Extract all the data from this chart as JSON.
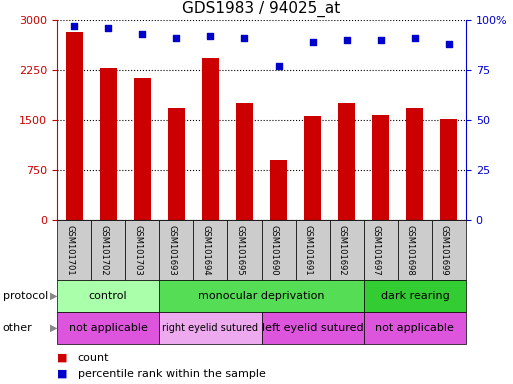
{
  "title": "GDS1983 / 94025_at",
  "samples": [
    "GSM101701",
    "GSM101702",
    "GSM101703",
    "GSM101693",
    "GSM101694",
    "GSM101695",
    "GSM101690",
    "GSM101691",
    "GSM101692",
    "GSM101697",
    "GSM101698",
    "GSM101699"
  ],
  "counts": [
    2820,
    2280,
    2130,
    1680,
    2430,
    1750,
    900,
    1560,
    1760,
    1570,
    1680,
    1520
  ],
  "percentile_ranks": [
    97,
    96,
    93,
    91,
    92,
    91,
    77,
    89,
    90,
    90,
    91,
    88
  ],
  "bar_color": "#cc0000",
  "dot_color": "#0000cc",
  "ylim_left": [
    0,
    3000
  ],
  "ylim_right": [
    0,
    100
  ],
  "yticks_left": [
    0,
    750,
    1500,
    2250,
    3000
  ],
  "yticks_right": [
    0,
    25,
    50,
    75,
    100
  ],
  "protocol_groups": [
    {
      "label": "control",
      "start": 0,
      "end": 3,
      "color": "#aaffaa"
    },
    {
      "label": "monocular deprivation",
      "start": 3,
      "end": 9,
      "color": "#55dd55"
    },
    {
      "label": "dark rearing",
      "start": 9,
      "end": 12,
      "color": "#33cc33"
    }
  ],
  "other_groups": [
    {
      "label": "not applicable",
      "start": 0,
      "end": 3,
      "color": "#dd55dd"
    },
    {
      "label": "right eyelid sutured",
      "start": 3,
      "end": 6,
      "color": "#eeaaee"
    },
    {
      "label": "left eyelid sutured",
      "start": 6,
      "end": 9,
      "color": "#dd55dd"
    },
    {
      "label": "not applicable",
      "start": 9,
      "end": 12,
      "color": "#dd55dd"
    }
  ],
  "legend_count_color": "#cc0000",
  "legend_dot_color": "#0000cc",
  "protocol_label": "protocol",
  "other_label": "other",
  "legend_count_label": "count",
  "legend_percentile_label": "percentile rank within the sample",
  "sample_cell_color": "#cccccc",
  "spine_color": "#000000"
}
